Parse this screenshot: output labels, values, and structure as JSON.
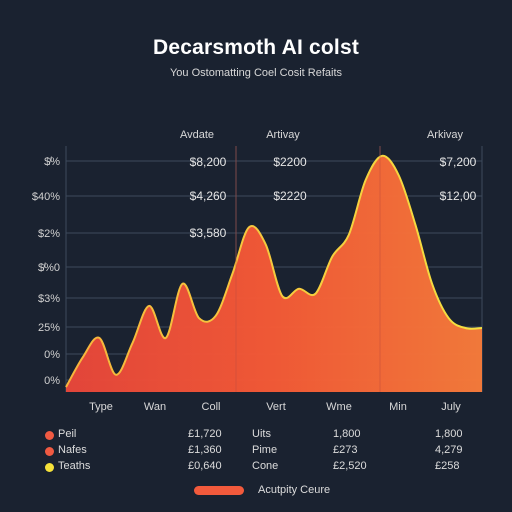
{
  "chart_data": {
    "type": "area",
    "title": "Decarsmoth AI colst",
    "subtitle": "You Ostomatting Coel Cosit Refaits",
    "column_headers": [
      "Avdate",
      "Artivay",
      "Arkivay"
    ],
    "y_ticks": [
      "$̸%",
      "$40%",
      "$2%",
      "$̸%0",
      "$3%",
      "25%",
      "0%",
      "0%"
    ],
    "x_ticks": [
      "Type",
      "Wan",
      "Coll",
      "Vert",
      "Wme",
      "Min",
      "July"
    ],
    "cell_labels": [
      "$8,200",
      "$2200",
      "$7,200",
      "$4,260",
      "$2220",
      "$12,00",
      "$3,580"
    ],
    "ylim": [
      0,
      100
    ],
    "series": [
      {
        "color": "#f25a3c",
        "x": [
          0,
          4,
          8,
          12,
          16,
          20,
          24,
          28,
          32,
          36,
          40,
          44,
          48,
          52,
          56,
          60,
          64,
          68,
          72,
          76,
          80,
          84,
          88,
          92,
          96,
          100
        ],
        "y": [
          2,
          14,
          22,
          7,
          20,
          35,
          22,
          44,
          30,
          31,
          48,
          67,
          60,
          39,
          42,
          40,
          55,
          64,
          86,
          96,
          88,
          68,
          44,
          30,
          26,
          26
        ]
      }
    ],
    "grid": true
  },
  "legend_table": {
    "rows": [
      {
        "color": "#f05a42",
        "name": "Peil",
        "v1": "£1,720",
        "name2": "Uits",
        "v2": "1,800",
        "v3": "1,800"
      },
      {
        "color": "#f05a42",
        "name": "Nafes",
        "v1": "£1,360",
        "name2": "Pime",
        "v2": "£273",
        "v3": "4,279"
      },
      {
        "color": "#f6e23a",
        "name": "Teaths",
        "v1": "£0,640",
        "name2": "Cone",
        "v2": "£2,520",
        "v3": "£258"
      }
    ]
  },
  "bottom_legend": {
    "label": "Acutpity Ceure"
  }
}
